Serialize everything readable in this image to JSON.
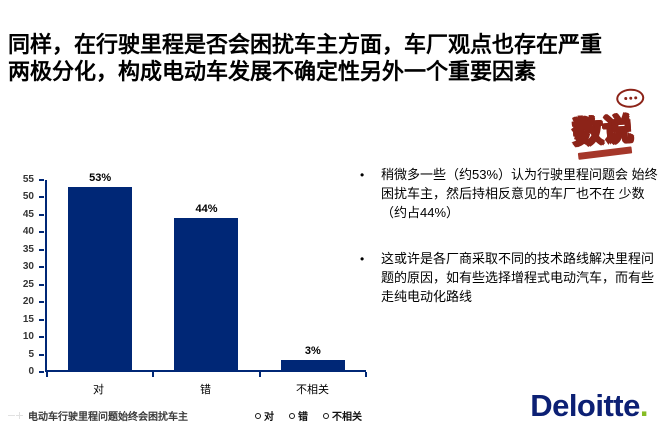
{
  "title": {
    "line1": "同样，在行驶里程是否会困扰车主方面，车厂观点也存在严重",
    "line2": "两极分化，构成电动车发展不确定性另外一个重要因素"
  },
  "stamp_logo": {
    "text": "数说"
  },
  "chart_data": {
    "type": "bar",
    "title": "",
    "categories": [
      "对",
      "错",
      "不相关"
    ],
    "values": [
      53,
      44,
      3
    ],
    "data_labels": [
      "53%",
      "44%",
      "3%"
    ],
    "series_name": "电动车行驶里程问题始终会困扰车主",
    "legend": [
      "对",
      "错",
      "不相关"
    ],
    "legend_position": "bottom-right",
    "xlabel": "",
    "ylabel": "",
    "ylim": [
      0,
      55
    ],
    "ytick_step": 5,
    "bar_color": "#002776",
    "axis_color": "#002776",
    "grid": false
  },
  "bullets": {
    "marker": "•",
    "items": [
      "稍微多一些（约53%）认为行驶里程问题会 始终困扰车主，然后持相反意见的车厂也不在 少数（约占44%）",
      "这或许是各厂商采取不同的技术路线解决里程问题的原因，如有些选择增程式电动汽车，而有些走纯电动化路线"
    ]
  },
  "brand": {
    "name": "Deloitte",
    "dot": ".",
    "navy": "#0c2074",
    "green": "#86bc25"
  }
}
